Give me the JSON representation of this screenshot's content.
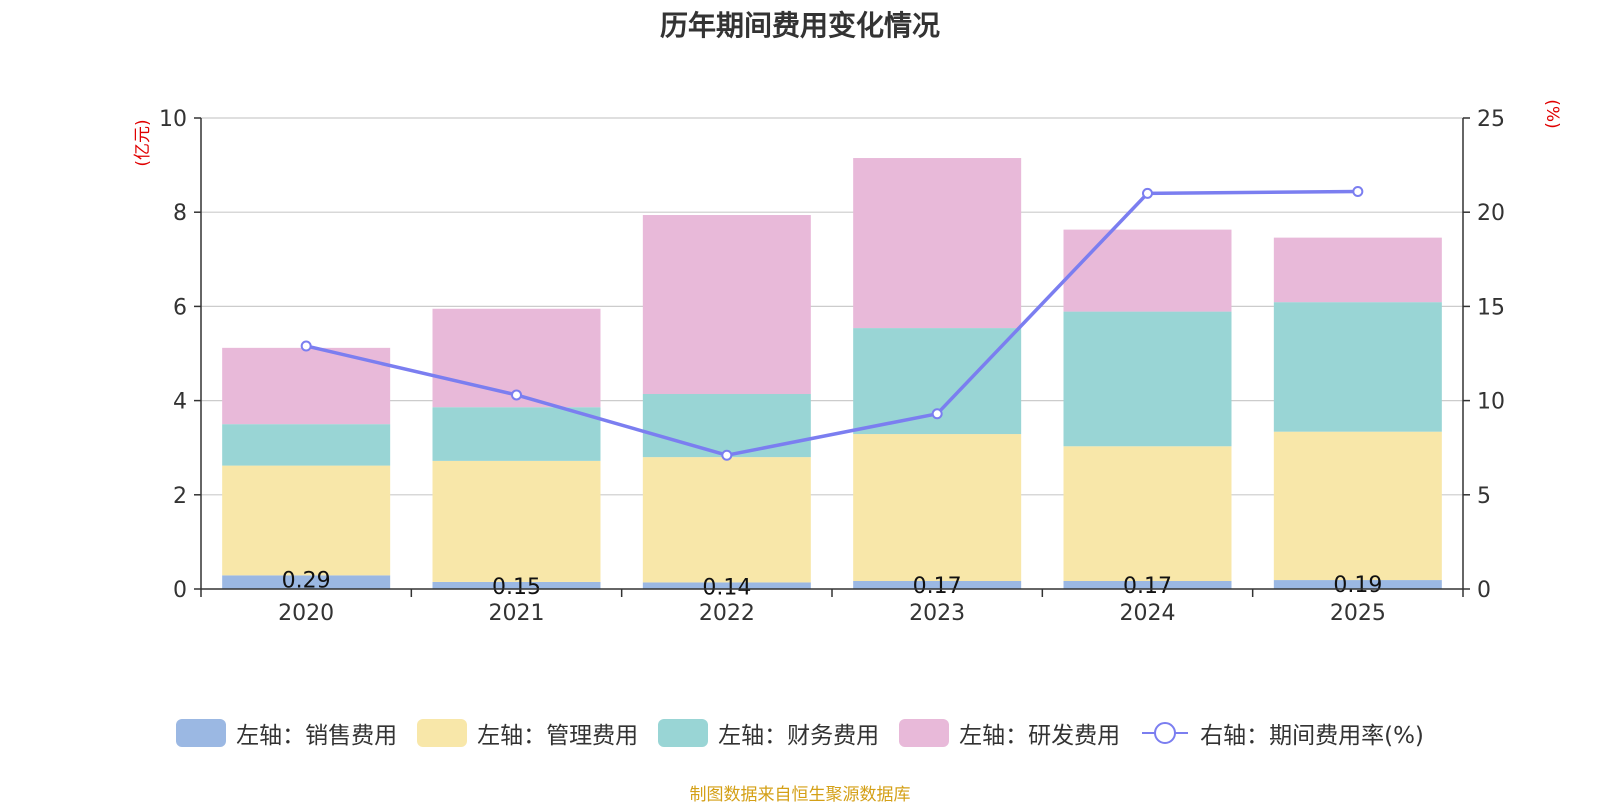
{
  "chart_data": {
    "type": "bar",
    "stacked": true,
    "title": "历年期间费用变化情况",
    "categories": [
      "2020",
      "2021",
      "2022",
      "2023",
      "2024",
      "2025"
    ],
    "series": [
      {
        "name": "左轴：销售费用",
        "axis": "left",
        "color": "#9bb8e3",
        "values": [
          0.29,
          0.15,
          0.14,
          0.17,
          0.17,
          0.19
        ]
      },
      {
        "name": "左轴：管理费用",
        "axis": "left",
        "color": "#f8e7a9",
        "values": [
          2.33,
          2.57,
          2.66,
          3.12,
          2.86,
          3.15
        ]
      },
      {
        "name": "左轴：财务费用",
        "axis": "left",
        "color": "#99d5d5",
        "values": [
          0.88,
          1.14,
          1.34,
          2.25,
          2.86,
          2.75
        ]
      },
      {
        "name": "左轴：研发费用",
        "axis": "left",
        "color": "#e8b9d9",
        "values": [
          1.62,
          2.09,
          3.8,
          3.61,
          1.74,
          1.37
        ]
      }
    ],
    "line_series": {
      "name": "右轴：期间费用率(%)",
      "axis": "right",
      "color": "#7b7ef0",
      "values": [
        12.9,
        10.3,
        7.1,
        9.3,
        21.0,
        21.1
      ]
    },
    "data_labels": [
      "0.29",
      "0.15",
      "0.14",
      "0.17",
      "0.17",
      "0.19"
    ],
    "ylabel_left": "(亿元)",
    "ylabel_right": "(%)",
    "ylim_left": [
      0,
      10
    ],
    "ylim_right": [
      0,
      25
    ],
    "yticks_left": [
      "0",
      "2",
      "4",
      "6",
      "8",
      "10"
    ],
    "yticks_right": [
      "0",
      "5",
      "10",
      "15",
      "20",
      "25"
    ],
    "grid": true,
    "legend_position": "bottom"
  },
  "footer": {
    "source": "制图数据来自恒生聚源数据库"
  }
}
